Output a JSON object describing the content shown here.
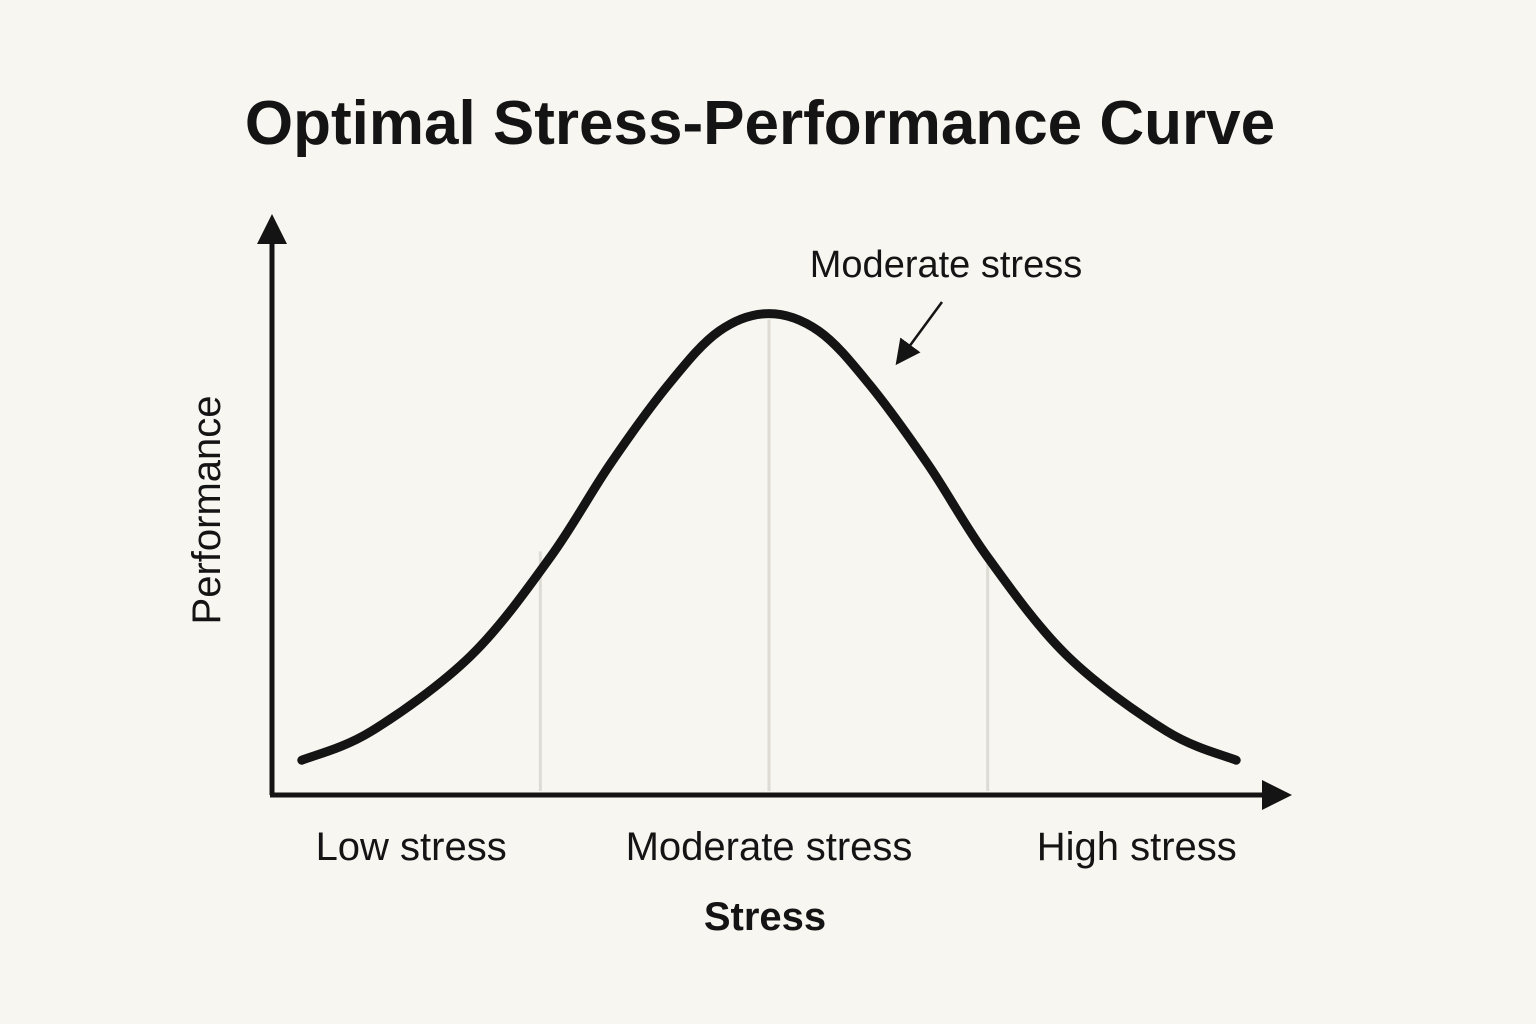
{
  "chart_data": {
    "type": "line",
    "title": "Optimal Stress-Performance Curve",
    "xlabel": "Stress",
    "ylabel": "Performance",
    "categories": [
      "Low stress",
      "Moderate stress",
      "High stress"
    ],
    "xlim": [
      0,
      1
    ],
    "ylim": [
      0,
      1
    ],
    "series": [
      {
        "name": "Performance",
        "x": [
          0.03,
          0.1,
          0.2,
          0.28,
          0.34,
          0.4,
          0.45,
          0.5,
          0.55,
          0.6,
          0.66,
          0.72,
          0.8,
          0.9,
          0.97
        ],
        "values": [
          0.06,
          0.11,
          0.24,
          0.41,
          0.57,
          0.71,
          0.8,
          0.83,
          0.8,
          0.71,
          0.57,
          0.41,
          0.24,
          0.11,
          0.06
        ]
      }
    ],
    "grid": false,
    "annotations": [
      {
        "text": "Moderate stress",
        "x": 0.61,
        "y": 0.8
      }
    ]
  },
  "colors": {
    "background": "#f8f6f1",
    "line": "#141414",
    "guide": "#dedbd4"
  }
}
